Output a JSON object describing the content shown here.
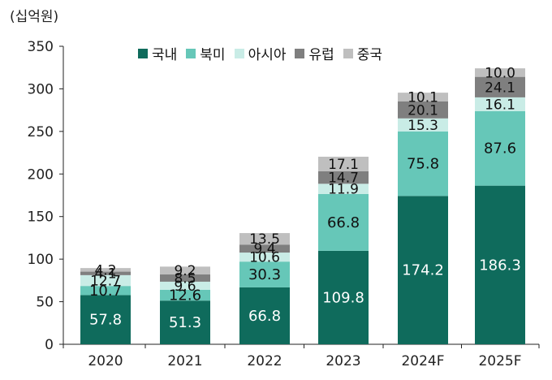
{
  "unit_label": "(십억원)",
  "colors": {
    "domestic": "#0f6b5c",
    "north_america": "#66c7b8",
    "asia": "#c9ece6",
    "europe": "#7f7f7f",
    "china": "#bfbfbf"
  },
  "chart_data": {
    "type": "bar",
    "stacked": true,
    "title": "",
    "xlabel": "",
    "ylabel": "(십억원)",
    "ylim": [
      0,
      350
    ],
    "yticks": [
      0,
      50,
      100,
      150,
      200,
      250,
      300,
      350
    ],
    "categories": [
      "2020",
      "2021",
      "2022",
      "2023",
      "2024F",
      "2025F"
    ],
    "legend_position": "top-center",
    "grid": false,
    "series": [
      {
        "name": "국내",
        "key": "domestic",
        "values": [
          57.8,
          51.3,
          66.8,
          109.8,
          174.2,
          186.3
        ]
      },
      {
        "name": "북미",
        "key": "north_america",
        "values": [
          10.7,
          12.6,
          30.3,
          66.8,
          75.8,
          87.6
        ]
      },
      {
        "name": "아시아",
        "key": "asia",
        "values": [
          12.7,
          9.6,
          10.6,
          11.9,
          15.3,
          16.1
        ]
      },
      {
        "name": "유럽",
        "key": "europe",
        "values": [
          4.1,
          8.5,
          9.4,
          14.7,
          20.1,
          24.1
        ]
      },
      {
        "name": "중국",
        "key": "china",
        "values": [
          4.2,
          9.2,
          13.5,
          17.1,
          10.1,
          10.0
        ]
      }
    ]
  }
}
